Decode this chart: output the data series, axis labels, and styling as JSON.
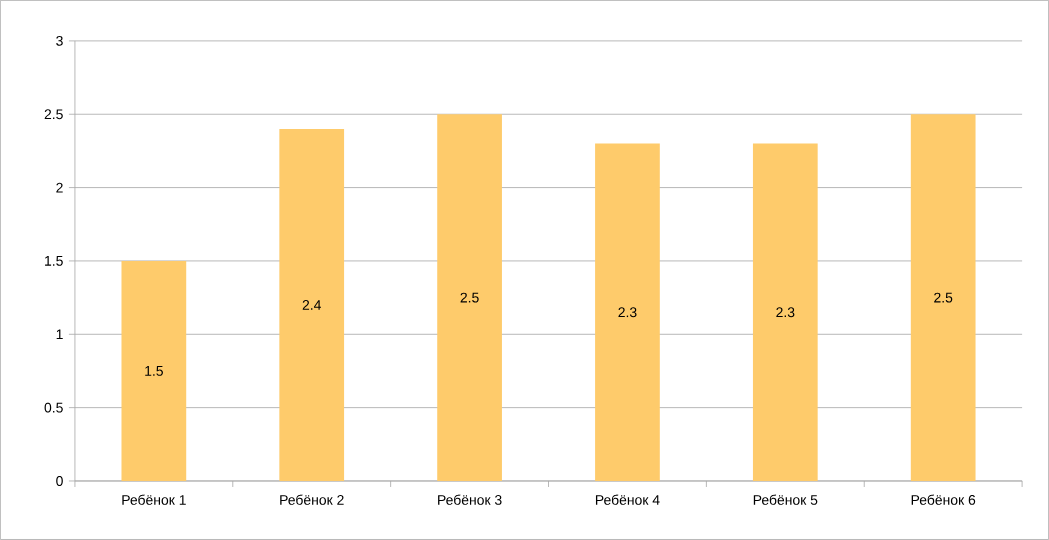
{
  "chart_data": {
    "type": "bar",
    "categories": [
      "Ребёнок 1",
      "Ребёнок 2",
      "Ребёнок 3",
      "Ребёнок 4",
      "Ребёнок 5",
      "Ребёнок 6"
    ],
    "values": [
      1.5,
      2.4,
      2.5,
      2.3,
      2.3,
      2.5
    ],
    "color": "#fecb6b",
    "ylim": [
      0,
      3
    ],
    "yticks": [
      0,
      0.5,
      1,
      1.5,
      2,
      2.5,
      3
    ],
    "grid": "y",
    "data_labels": true
  }
}
